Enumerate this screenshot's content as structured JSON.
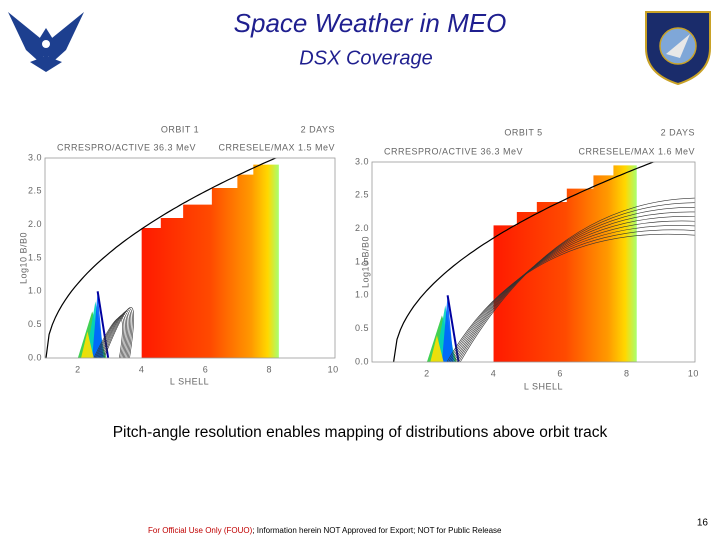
{
  "header": {
    "title": "Space Weather in MEO",
    "subtitle": "DSX Coverage"
  },
  "plots": [
    {
      "orbit": "ORBIT 1",
      "duration": "2 DAYS",
      "proton_label": "CRRESPRO/ACTIVE 36.3 MeV",
      "electron_label": "CRRESELE/MAX 1.5 MeV",
      "y_label": "Log10 B/B0",
      "x_label": "L SHELL",
      "yticks": [
        "0.0",
        "0.5",
        "1.0",
        "1.5",
        "2.0",
        "2.5",
        "3.0"
      ],
      "xticks": [
        "2",
        "4",
        "6",
        "8",
        "10"
      ]
    },
    {
      "orbit": "ORBIT 5",
      "duration": "2 DAYS",
      "proton_label": "CRRESPRO/ACTIVE 36.3 MeV",
      "electron_label": "CRRESELE/MAX 1.6 MeV",
      "y_label": "Log10 B/B0",
      "x_label": "L SHELL",
      "yticks": [
        "0.0",
        "0.5",
        "1.0",
        "1.5",
        "2.0",
        "2.5",
        "3.0"
      ],
      "xticks": [
        "2",
        "4",
        "6",
        "8",
        "10"
      ]
    }
  ],
  "caption": "Pitch-angle resolution enables mapping of distributions above orbit track",
  "footer": {
    "marking": "For Official Use Only (FOUO)",
    "notice": "; Information herein NOT Approved for Export; NOT for Public Release"
  },
  "page_number": "16"
}
